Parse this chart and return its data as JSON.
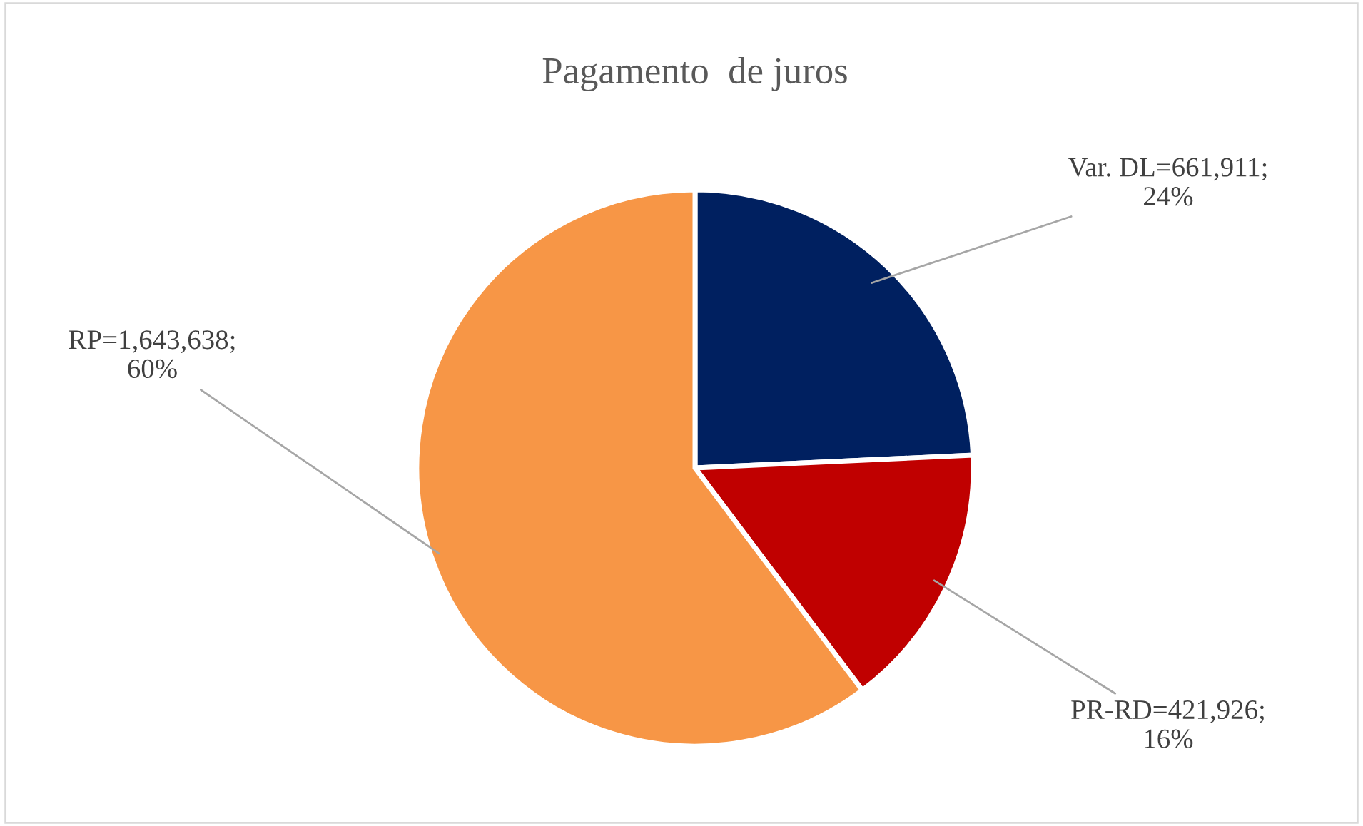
{
  "chart_data": {
    "type": "pie",
    "title": "Pagamento  de juros",
    "categories": [
      "Var. DL=",
      "PR-RD=",
      "RP="
    ],
    "values": [
      661911,
      421926,
      1643638
    ],
    "colors": [
      "#002060",
      "#c00000",
      "#f79646"
    ],
    "value_labels": [
      "661,911;\n24%",
      "421,926;\n16%",
      "1,643,638;\n60%"
    ],
    "legend": false
  }
}
